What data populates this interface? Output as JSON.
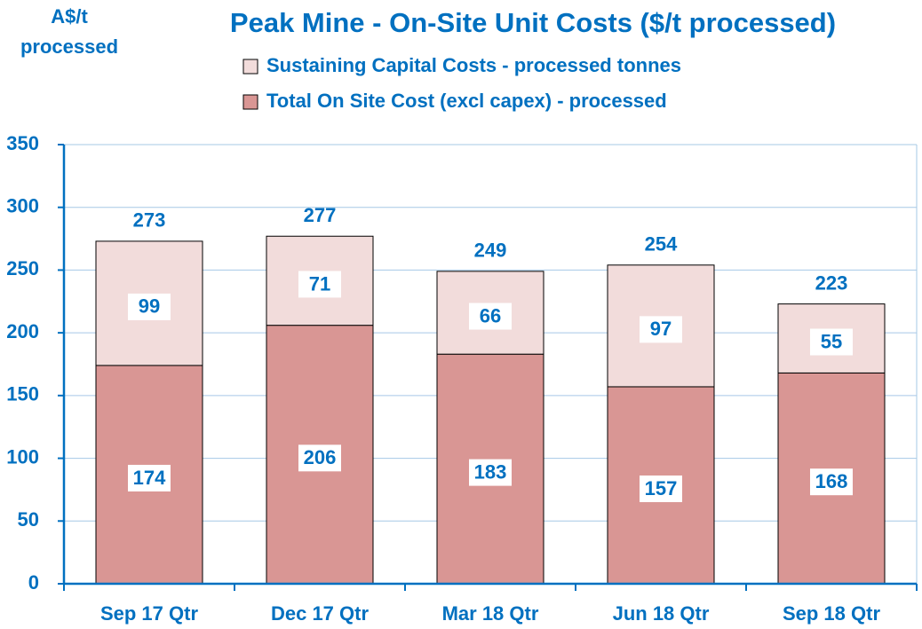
{
  "chart_data": {
    "type": "stacked_bar",
    "title": "Peak Mine -  On-Site Unit Costs ($/t processed)",
    "y_axis_label": [
      "A$/t",
      "processed"
    ],
    "categories": [
      "Sep 17 Qtr",
      "Dec 17 Qtr",
      "Mar 18 Qtr",
      "Jun 18 Qtr",
      "Sep 18 Qtr"
    ],
    "series": [
      {
        "name": "Total On Site Cost (excl capex) - processed",
        "color": "#d99694",
        "values": [
          174,
          206,
          183,
          157,
          168
        ]
      },
      {
        "name": "Sustaining Capital Costs - processed tonnes",
        "color": "#f2dcdb",
        "values": [
          99,
          71,
          66,
          97,
          55
        ]
      }
    ],
    "totals": [
      273,
      277,
      249,
      254,
      223
    ],
    "ylim": [
      0,
      350
    ],
    "yticks": [
      0,
      50,
      100,
      150,
      200,
      250,
      300,
      350
    ],
    "grid": true
  }
}
